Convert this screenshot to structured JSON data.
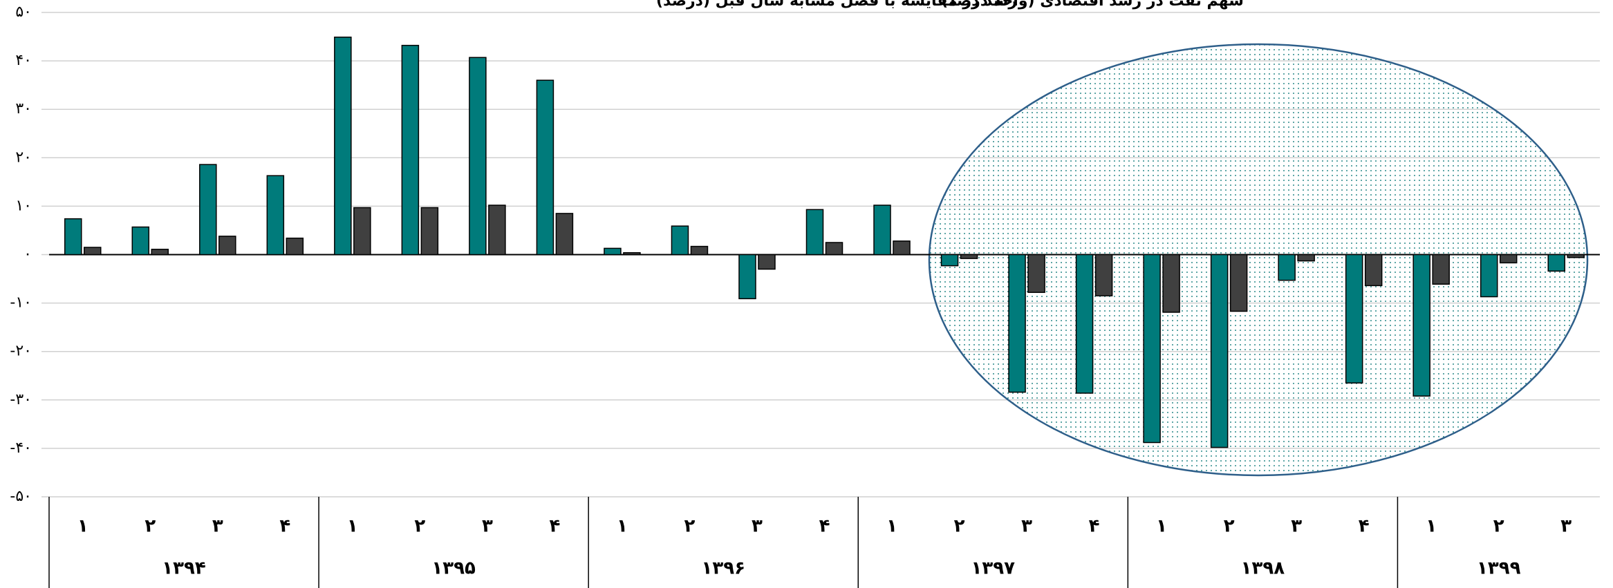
{
  "chart_data": {
    "type": "bar",
    "groups": [
      {
        "label": "۱۳۹۴",
        "categories": [
          "۱",
          "۲",
          "۳",
          "۴"
        ]
      },
      {
        "label": "۱۳۹۵",
        "categories": [
          "۱",
          "۲",
          "۳",
          "۴"
        ]
      },
      {
        "label": "۱۳۹۶",
        "categories": [
          "۱",
          "۲",
          "۳",
          "۴"
        ]
      },
      {
        "label": "۱۳۹۷",
        "categories": [
          "۱",
          "۲",
          "۳",
          "۴"
        ]
      },
      {
        "label": "۱۳۹۸",
        "categories": [
          "۱",
          "۲",
          "۳",
          "۴"
        ]
      },
      {
        "label": "۱۳۹۹",
        "categories": [
          "۱",
          "۲",
          "۳"
        ]
      }
    ],
    "series": [
      {
        "name": "رشد در مقایسه با فصل مشابه سال قبل (درصد)",
        "color": "#007b7b",
        "values": [
          7.4,
          5.7,
          18.6,
          16.3,
          44.9,
          43.2,
          40.7,
          36,
          1.3,
          5.9,
          -9.1,
          9.3,
          10.2,
          -2.3,
          -28.4,
          -28.6,
          -38.8,
          -39.8,
          -5.3,
          -26.5,
          -29.2,
          -8.7,
          -3.4
        ]
      },
      {
        "name": "سهم نفت در رشد اقتصادی (واحد درصد)",
        "color": "#404040",
        "values": [
          1.5,
          1.1,
          3.8,
          3.4,
          9.7,
          9.7,
          10.2,
          8.5,
          0.4,
          1.7,
          -3,
          2.5,
          2.8,
          -0.8,
          -7.8,
          -8.5,
          -11.9,
          -11.7,
          -1.3,
          -6.4,
          -6.1,
          -1.7,
          -0.6
        ]
      }
    ],
    "ylim": [
      -50,
      50
    ],
    "yticks": [
      {
        "value": -50,
        "label": "-۵۰"
      },
      {
        "value": -40,
        "label": "-۴۰"
      },
      {
        "value": -30,
        "label": "-۳۰"
      },
      {
        "value": -20,
        "label": "-۲۰"
      },
      {
        "value": -10,
        "label": "-۱۰"
      },
      {
        "value": 0,
        "label": "۰"
      },
      {
        "value": 10,
        "label": "۱۰"
      },
      {
        "value": 20,
        "label": "۲۰"
      },
      {
        "value": 30,
        "label": "۳۰"
      },
      {
        "value": 40,
        "label": "۴۰"
      },
      {
        "value": 50,
        "label": "۵۰"
      }
    ],
    "grid": true
  }
}
